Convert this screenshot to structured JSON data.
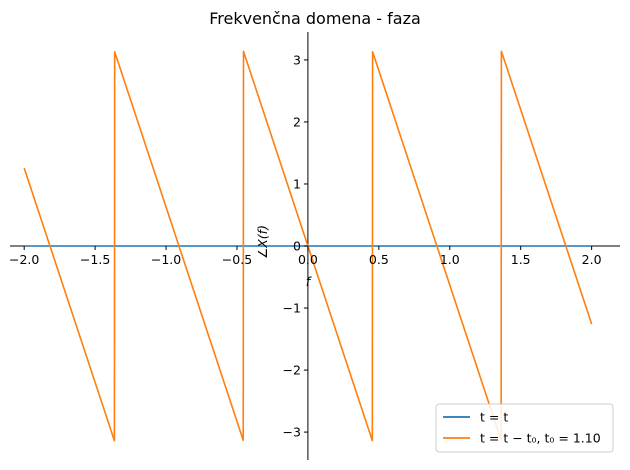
{
  "chart_data": {
    "type": "line",
    "title": "Frekvenčna domena - faza",
    "xlabel": "f",
    "ylabel": "∠X(f)",
    "xlim": [
      -2.1,
      2.2
    ],
    "ylim": [
      -3.45,
      3.45
    ],
    "xticks": [
      -2.0,
      -1.5,
      -1.0,
      -0.5,
      0.0,
      0.5,
      1.0,
      1.5,
      2.0
    ],
    "xtick_labels": [
      "−2.0",
      "−1.5",
      "−1.0",
      "−0.5",
      "0.0",
      "0.5",
      "1.0",
      "1.5",
      "2.0"
    ],
    "yticks": [
      -3,
      -2,
      -1,
      0,
      1,
      2,
      3
    ],
    "ytick_labels": [
      "−3",
      "−2",
      "−1",
      "0",
      "1",
      "2",
      "3"
    ],
    "grid": false,
    "legend_position": "lower-right",
    "series": [
      {
        "name": "t = t",
        "color": "#1f77b4",
        "kind": "constant",
        "y": 0,
        "x_range": [
          -2.0,
          2.0
        ]
      },
      {
        "name": "t = t − t₀, t₀ = 1.10",
        "color": "#ff7f0e",
        "kind": "wrapped_phase",
        "t0": 1.1,
        "x_range": [
          -2.0,
          2.0
        ]
      }
    ]
  }
}
